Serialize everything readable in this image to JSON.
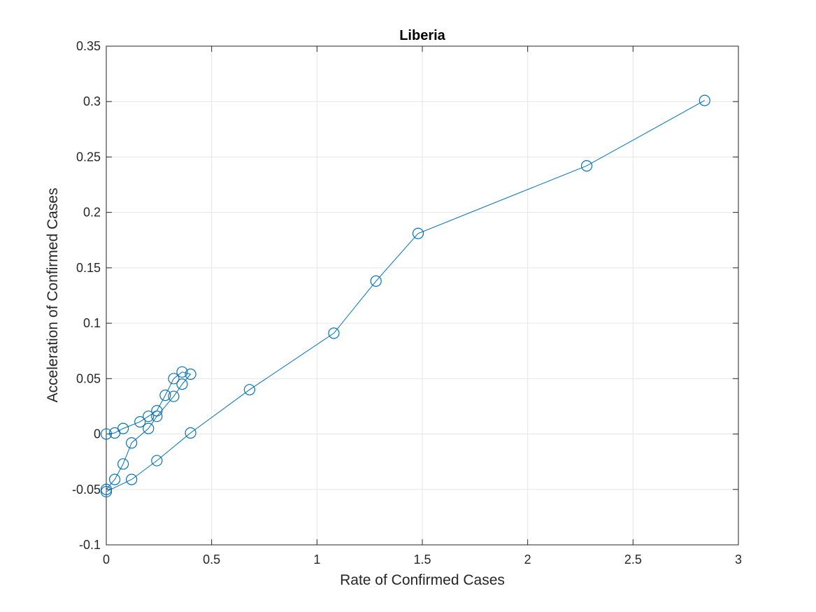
{
  "chart_data": {
    "type": "line",
    "title": "Liberia",
    "xlabel": "Rate of Confirmed Cases",
    "ylabel": "Acceleration of Confirmed Cases",
    "xlim": [
      0,
      3
    ],
    "ylim": [
      -0.1,
      0.35
    ],
    "xticks": [
      0,
      0.5,
      1,
      1.5,
      2,
      2.5,
      3
    ],
    "xtick_labels": [
      "0",
      "0.5",
      "1",
      "1.5",
      "2",
      "2.5",
      "3"
    ],
    "yticks": [
      -0.1,
      -0.05,
      0,
      0.05,
      0.1,
      0.15,
      0.2,
      0.25,
      0.3,
      0.35
    ],
    "ytick_labels": [
      "-0.1",
      "-0.05",
      "0",
      "0.05",
      "0.1",
      "0.15",
      "0.2",
      "0.25",
      "0.3",
      "0.35"
    ],
    "grid": true,
    "marker": "circle-open",
    "color": "#0072bd",
    "series": [
      {
        "x": [
          0,
          0.04,
          0.08,
          0.16,
          0.2,
          0.24,
          0.28,
          0.32,
          0.36,
          0.4,
          0.36,
          0.32,
          0.24,
          0.2,
          0.12,
          0.08,
          0.04,
          0,
          0,
          0.12,
          0.24,
          0.4,
          0.68,
          1.08,
          1.28,
          1.48,
          2.28,
          2.84
        ],
        "y": [
          0,
          0.001,
          0.005,
          0.011,
          0.016,
          0.021,
          0.035,
          0.05,
          0.056,
          0.054,
          0.045,
          0.034,
          0.016,
          0.005,
          -0.008,
          -0.027,
          -0.041,
          -0.05,
          -0.052,
          -0.041,
          -0.024,
          0.001,
          0.04,
          0.091,
          0.138,
          0.181,
          0.242,
          0.301
        ]
      }
    ]
  }
}
